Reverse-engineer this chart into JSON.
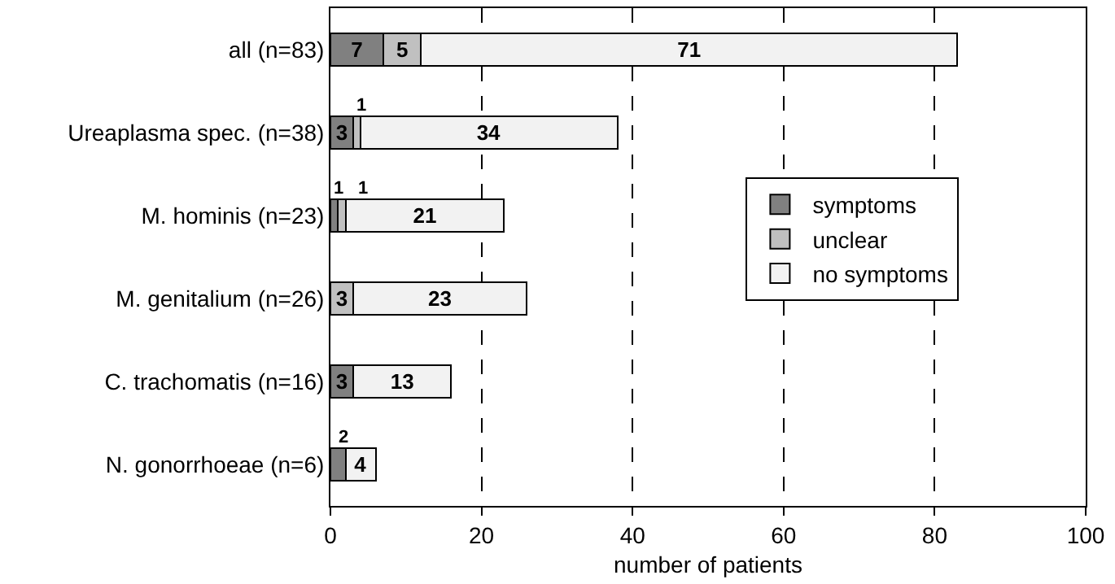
{
  "chart_data": {
    "type": "bar",
    "orientation": "horizontal",
    "stacked": true,
    "xlabel": "number of patients",
    "categories": [
      "all (n=83)",
      "Ureaplasma spec. (n=38)",
      "M. hominis (n=23)",
      "M. genitalium (n=26)",
      "C. trachomatis (n=16)",
      "N. gonorrhoeae (n=6)"
    ],
    "series": [
      {
        "name": "symptoms",
        "color": "#808080",
        "values": [
          7,
          3,
          1,
          0,
          3,
          2
        ],
        "value_labels": [
          "7",
          "3",
          "1",
          null,
          "3",
          "2"
        ]
      },
      {
        "name": "unclear",
        "color": "#c0c0c0",
        "values": [
          5,
          1,
          1,
          3,
          0,
          0
        ],
        "value_labels": [
          "5",
          "1",
          "1",
          "3",
          null,
          null
        ]
      },
      {
        "name": "no symptoms",
        "color": "#f2f2f2",
        "values": [
          71,
          34,
          21,
          23,
          13,
          4
        ],
        "value_labels": [
          "71",
          "34",
          "21",
          "23",
          "13",
          "4"
        ]
      }
    ],
    "xlim": [
      0,
      100
    ],
    "xticks": [
      0,
      20,
      40,
      60,
      80,
      100
    ],
    "grid": "x",
    "legend": "right"
  }
}
